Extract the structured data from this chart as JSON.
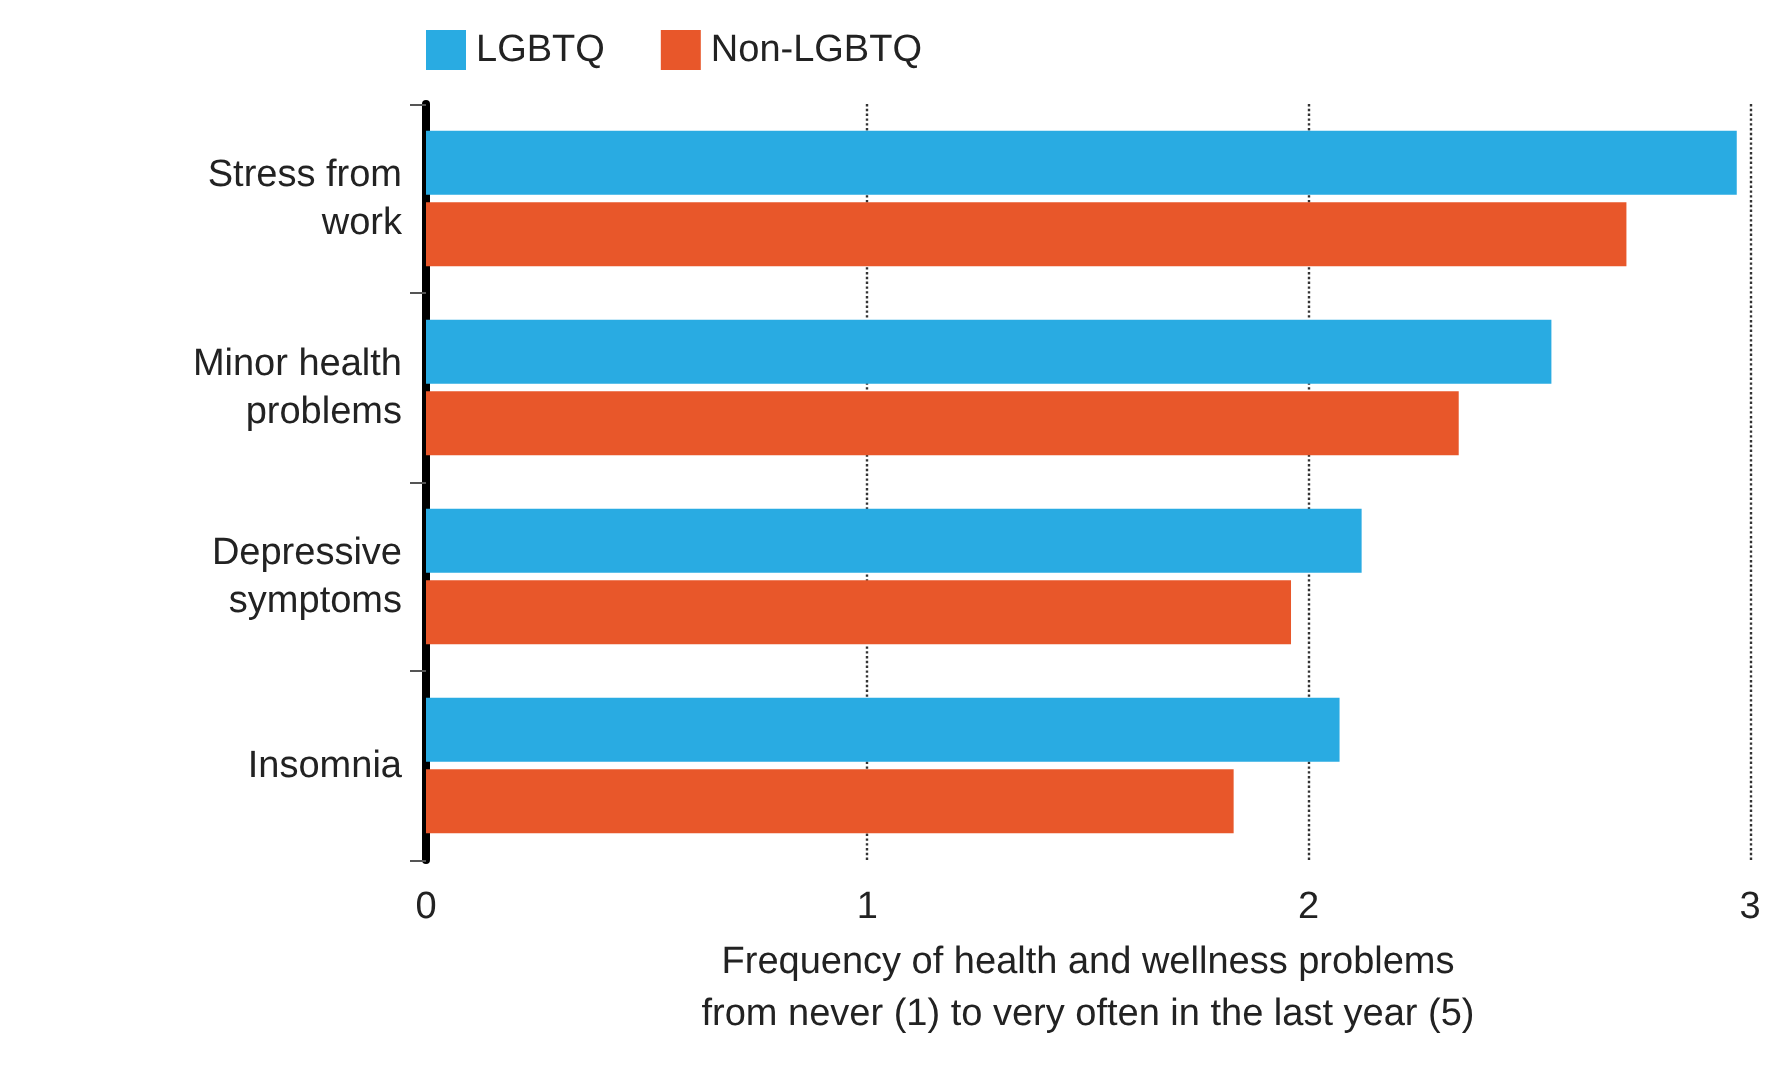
{
  "chart_data": {
    "type": "bar",
    "orientation": "horizontal",
    "xlabel": "Frequency of health and wellness problems\nfrom never (1) to very often in the last year (5)",
    "categories": [
      "Stress from\nwork",
      "Minor health\nproblems",
      "Depressive\nsymptoms",
      "Insomnia"
    ],
    "series": [
      {
        "name": "LGBTQ",
        "color": "#29abe2",
        "values": [
          2.97,
          2.55,
          2.12,
          2.07
        ]
      },
      {
        "name": "Non-LGBTQ",
        "color": "#e8572a",
        "values": [
          2.72,
          2.34,
          1.96,
          1.83
        ]
      }
    ],
    "xlim": [
      0,
      3
    ],
    "xticks": [
      0,
      1,
      2,
      3
    ],
    "grid": "x",
    "legend": "top left"
  }
}
